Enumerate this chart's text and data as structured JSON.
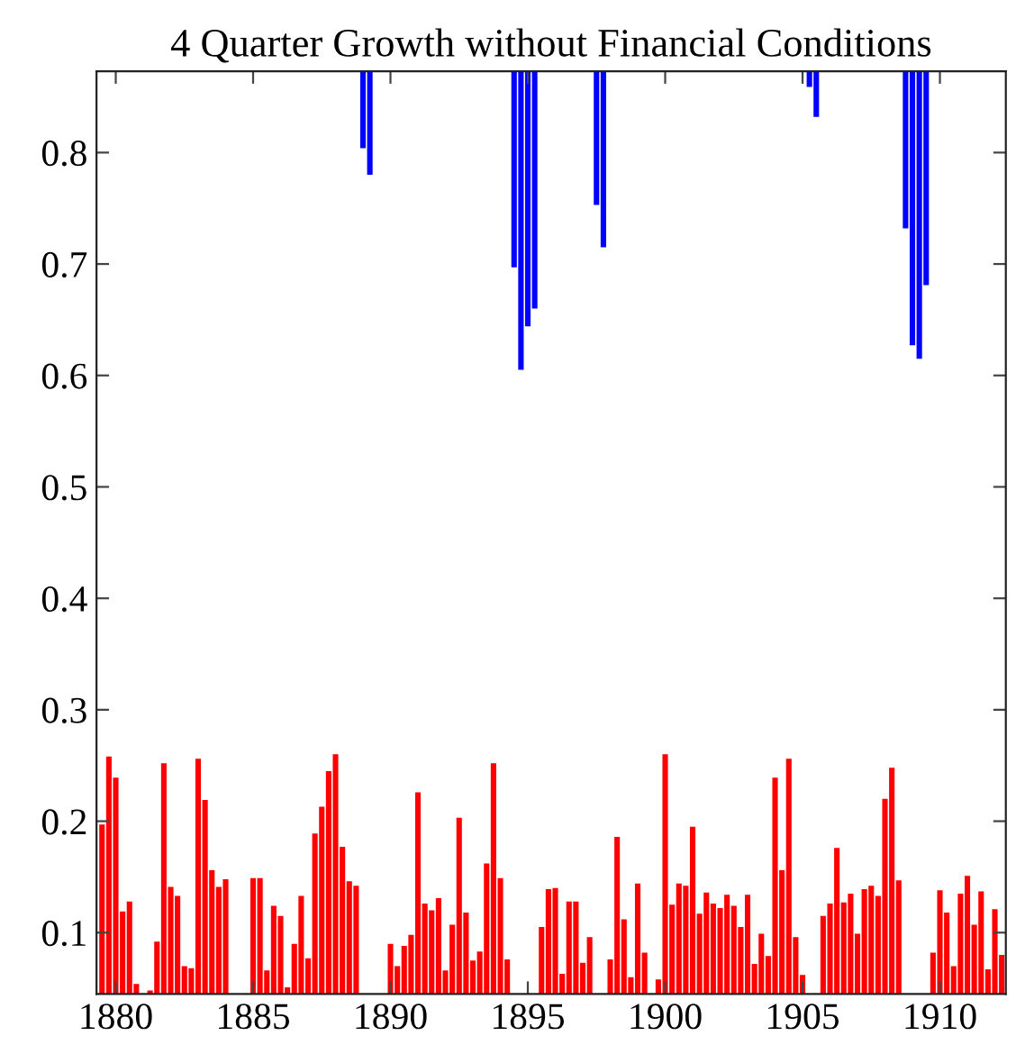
{
  "chart_data": {
    "type": "bar",
    "title": "4 Quarter Growth without Financial Conditions",
    "x": [
      1879.5,
      1879.75,
      1880.0,
      1880.25,
      1880.5,
      1880.75,
      1881.0,
      1881.25,
      1881.5,
      1881.75,
      1882.0,
      1882.25,
      1882.5,
      1882.75,
      1883.0,
      1883.25,
      1883.5,
      1883.75,
      1884.0,
      1884.25,
      1884.5,
      1884.75,
      1885.0,
      1885.25,
      1885.5,
      1885.75,
      1886.0,
      1886.25,
      1886.5,
      1886.75,
      1887.0,
      1887.25,
      1887.5,
      1887.75,
      1888.0,
      1888.25,
      1888.5,
      1888.75,
      1889.0,
      1889.25,
      1889.5,
      1889.75,
      1890.0,
      1890.25,
      1890.5,
      1890.75,
      1891.0,
      1891.25,
      1891.5,
      1891.75,
      1892.0,
      1892.25,
      1892.5,
      1892.75,
      1893.0,
      1893.25,
      1893.5,
      1893.75,
      1894.0,
      1894.25,
      1894.5,
      1894.75,
      1895.0,
      1895.25,
      1895.5,
      1895.75,
      1896.0,
      1896.25,
      1896.5,
      1896.75,
      1897.0,
      1897.25,
      1897.5,
      1897.75,
      1898.0,
      1898.25,
      1898.5,
      1898.75,
      1899.0,
      1899.25,
      1899.5,
      1899.75,
      1900.0,
      1900.25,
      1900.5,
      1900.75,
      1901.0,
      1901.25,
      1901.5,
      1901.75,
      1902.0,
      1902.25,
      1902.5,
      1902.75,
      1903.0,
      1903.25,
      1903.5,
      1903.75,
      1904.0,
      1904.25,
      1904.5,
      1904.75,
      1905.0,
      1905.25,
      1905.5,
      1905.75,
      1906.0,
      1906.25,
      1906.5,
      1906.75,
      1907.0,
      1907.25,
      1907.5,
      1907.75,
      1908.0,
      1908.25,
      1908.5,
      1908.75,
      1909.0,
      1909.25,
      1909.5,
      1909.75,
      1910.0,
      1910.25,
      1910.5,
      1910.75,
      1911.0,
      1911.25,
      1911.5,
      1911.75,
      1912.0,
      1912.25
    ],
    "series": [
      {
        "color": "#ff0000",
        "values": [
          0.197,
          0.258,
          0.239,
          0.119,
          0.128,
          0.054,
          null,
          0.048,
          0.092,
          0.252,
          0.141,
          0.133,
          0.07,
          0.068,
          0.256,
          0.219,
          0.156,
          0.141,
          0.148,
          null,
          null,
          null,
          0.149,
          0.149,
          0.066,
          0.124,
          0.115,
          0.051,
          0.09,
          0.133,
          0.077,
          0.189,
          0.213,
          0.245,
          0.26,
          0.177,
          0.146,
          0.142,
          null,
          null,
          null,
          null,
          0.09,
          0.07,
          0.088,
          0.098,
          0.226,
          0.126,
          0.12,
          0.131,
          0.066,
          0.107,
          0.203,
          0.118,
          0.075,
          0.083,
          0.162,
          0.252,
          0.149,
          0.076,
          null,
          null,
          null,
          null,
          0.105,
          0.139,
          0.14,
          0.063,
          0.128,
          0.128,
          0.073,
          0.096,
          null,
          null,
          0.076,
          0.186,
          0.112,
          0.06,
          0.144,
          0.082,
          null,
          0.058,
          0.26,
          0.125,
          0.144,
          0.142,
          0.195,
          0.117,
          0.136,
          0.126,
          0.122,
          0.134,
          0.124,
          0.105,
          0.134,
          0.072,
          0.099,
          0.079,
          0.239,
          0.156,
          0.256,
          0.096,
          0.062,
          null,
          null,
          0.115,
          0.126,
          0.176,
          0.127,
          0.135,
          0.099,
          0.139,
          0.142,
          0.133,
          0.22,
          0.248,
          0.147,
          null,
          null,
          null,
          null,
          0.082,
          0.138,
          0.118,
          0.07,
          0.135,
          0.151,
          0.107,
          0.137,
          0.067,
          0.121,
          0.08
        ]
      },
      {
        "color": "#0000ff",
        "x": [
          1889.0,
          1889.25,
          1894.5,
          1894.75,
          1895.0,
          1895.25,
          1897.5,
          1897.75,
          1905.25,
          1905.5,
          1908.75,
          1909.0,
          1909.25,
          1909.5
        ],
        "base": [
          0.804,
          0.78,
          0.697,
          0.605,
          0.644,
          0.66,
          0.753,
          0.715,
          0.859,
          0.832,
          0.732,
          0.627,
          0.615,
          0.681
        ],
        "values": [
          0.069,
          0.093,
          0.176,
          0.268,
          0.229,
          0.213,
          0.12,
          0.158,
          0.014,
          0.041,
          0.141,
          0.246,
          0.258,
          0.192
        ]
      }
    ],
    "xlim": [
      1879.3,
      1912.4
    ],
    "xticks": [
      1880,
      1885,
      1890,
      1895,
      1900,
      1905,
      1910
    ],
    "ylim": [
      0.045,
      0.873
    ],
    "yticks": [
      0.1,
      0.2,
      0.3,
      0.4,
      0.5,
      0.6,
      0.7,
      0.8
    ],
    "grid": false,
    "legend": false
  }
}
